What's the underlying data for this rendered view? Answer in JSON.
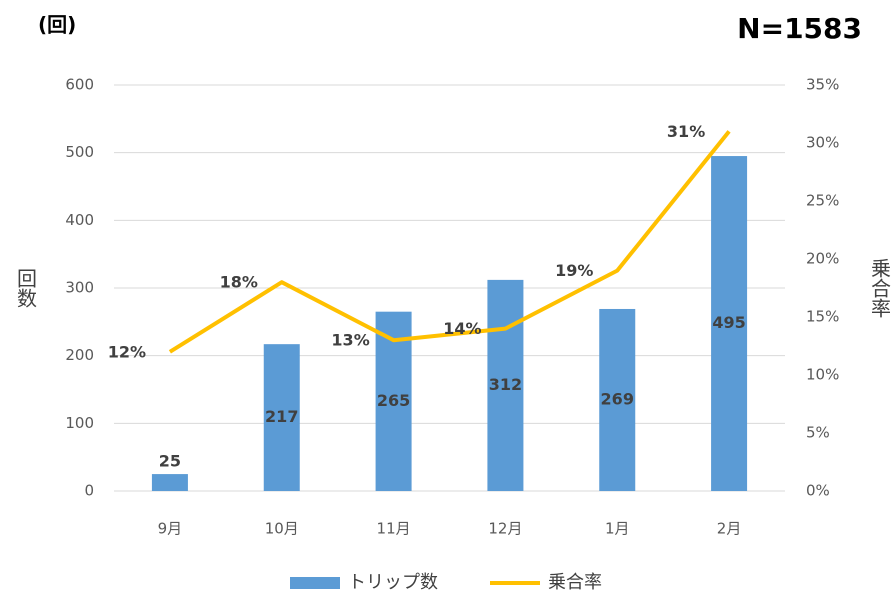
{
  "chart_data": {
    "type": "bar",
    "corner_label": "(回)",
    "note": "N=1583",
    "ylabel": "回数",
    "y2label": "乗合率",
    "categories": [
      "9月",
      "10月",
      "11月",
      "12月",
      "1月",
      "2月"
    ],
    "series": [
      {
        "name": "トリップ数",
        "type": "bar",
        "color": "#5b9bd5",
        "values": [
          25,
          217,
          265,
          312,
          269,
          495
        ]
      },
      {
        "name": "乗合率",
        "type": "line",
        "axis": "y2",
        "color": "#ffc000",
        "values": [
          12,
          18,
          13,
          14,
          19,
          31
        ],
        "value_labels": [
          "12%",
          "18%",
          "13%",
          "14%",
          "19%",
          "31%"
        ]
      }
    ],
    "ylim": [
      0,
      600
    ],
    "yticks": [
      0,
      100,
      200,
      300,
      400,
      500,
      600
    ],
    "y2lim": [
      0,
      35
    ],
    "y2ticks": [
      {
        "value": 0,
        "label": "0%"
      },
      {
        "value": 5,
        "label": "5%"
      },
      {
        "value": 10,
        "label": "10%"
      },
      {
        "value": 15,
        "label": "15%"
      },
      {
        "value": 20,
        "label": "20%"
      },
      {
        "value": 25,
        "label": "25%"
      },
      {
        "value": 30,
        "label": "30%"
      },
      {
        "value": 35,
        "label": "35%"
      }
    ],
    "grid": true,
    "legend": "bottom"
  }
}
